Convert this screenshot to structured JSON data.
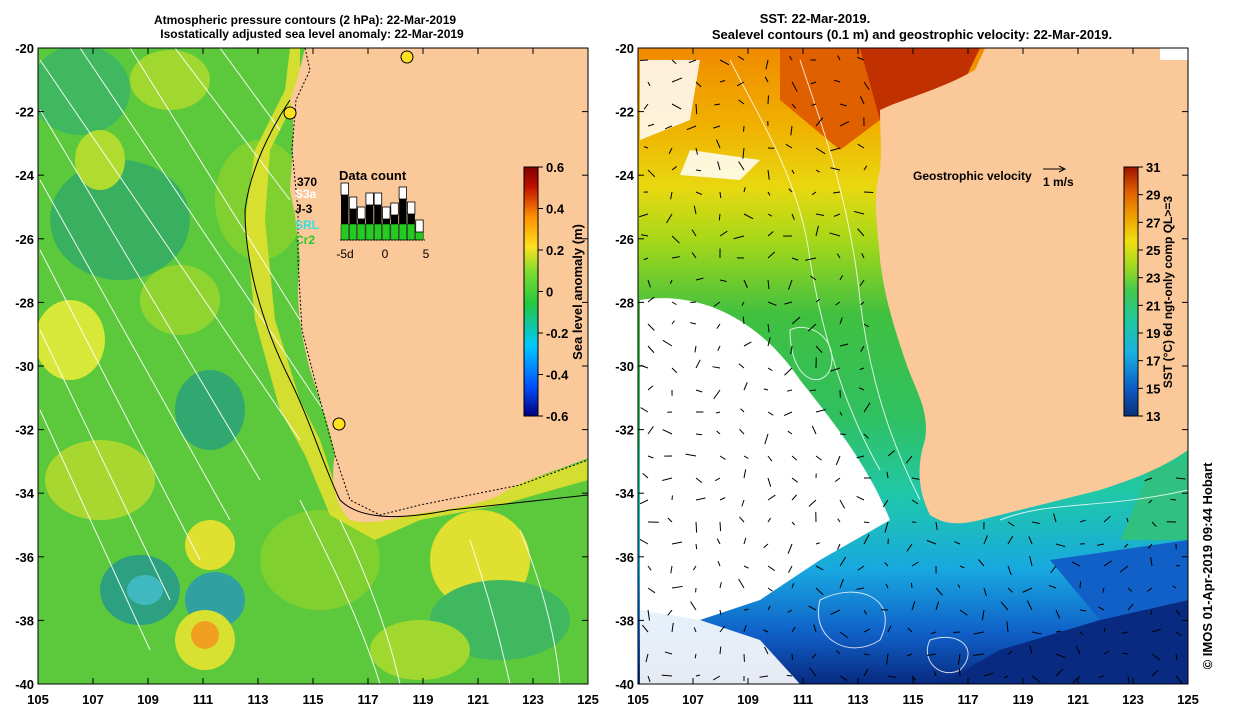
{
  "left_panel": {
    "title_line1": "Atmospheric pressure contours (2 hPa): 22-Mar-2019",
    "title_line2": "Isostatically adjusted sea level anomaly: 22-Mar-2019",
    "x_ticks": [
      "105",
      "107",
      "109",
      "111",
      "113",
      "115",
      "117",
      "119",
      "121",
      "123",
      "125"
    ],
    "y_ticks": [
      "-20",
      "-22",
      "-24",
      "-26",
      "-28",
      "-30",
      "-32",
      "-34",
      "-36",
      "-38",
      "-40"
    ],
    "colorbar": {
      "label": "Sea level anomaly (m)",
      "ticks": [
        "0.6",
        "0.4",
        "0.2",
        "0",
        "-0.2",
        "-0.4",
        "-0.6"
      ]
    },
    "data_count": {
      "title": "Data count",
      "count": "370",
      "missions": [
        {
          "name": "S3a",
          "color": "#ffffff"
        },
        {
          "name": "J-3",
          "color": "#000000"
        },
        {
          "name": "SRL",
          "color": "#33e0e0"
        },
        {
          "name": "Cr2",
          "color": "#22cc22"
        }
      ],
      "axis_ticks": [
        "-5d",
        "0",
        "5"
      ]
    }
  },
  "right_panel": {
    "title_line1": "SST: 22-Mar-2019.",
    "title_line2": "Sealevel contours (0.1 m) and geostrophic velocity: 22-Mar-2019.",
    "x_ticks": [
      "105",
      "107",
      "109",
      "111",
      "113",
      "115",
      "117",
      "119",
      "121",
      "123",
      "125"
    ],
    "y_ticks": [
      "-20",
      "-22",
      "-24",
      "-26",
      "-28",
      "-30",
      "-32",
      "-34",
      "-36",
      "-38",
      "-40"
    ],
    "velocity_legend": {
      "label": "Geostrophic velocity",
      "unit": "1 m/s"
    },
    "colorbar": {
      "label": "SST (°C) 6d ngt-only comp QL>=3",
      "ticks": [
        "31",
        "29",
        "27",
        "25",
        "23",
        "21",
        "19",
        "17",
        "15",
        "13"
      ]
    }
  },
  "credit": "© IMOS 01-Apr-2019 09:44 Hobart",
  "colors": {
    "land": "#fbc89a",
    "sla_colormap": [
      "#000080",
      "#0050ff",
      "#00c8ff",
      "#22c840",
      "#80dc30",
      "#ffe020",
      "#ff9000",
      "#c01000",
      "#800000"
    ],
    "sst_colormap": [
      "#08307a",
      "#1060c8",
      "#18b0e0",
      "#20c8a0",
      "#40c850",
      "#a0d820",
      "#f0e010",
      "#f0a000",
      "#e06000",
      "#a01000"
    ]
  }
}
